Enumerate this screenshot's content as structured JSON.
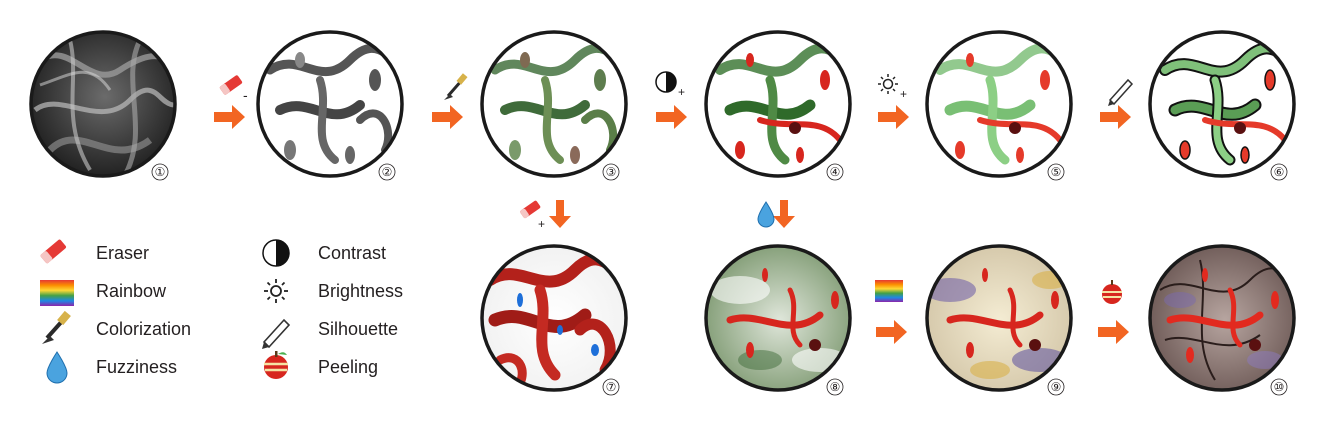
{
  "figure": {
    "panels": [
      {
        "number": "①",
        "name": "raw-volume"
      },
      {
        "number": "②",
        "name": "after-erase"
      },
      {
        "number": "③",
        "name": "after-colorization"
      },
      {
        "number": "④",
        "name": "after-contrast"
      },
      {
        "number": "⑤",
        "name": "after-brightness"
      },
      {
        "number": "⑥",
        "name": "after-silhouette"
      },
      {
        "number": "⑦",
        "name": "after-eraser-add"
      },
      {
        "number": "⑧",
        "name": "after-fuzziness"
      },
      {
        "number": "⑨",
        "name": "after-rainbow"
      },
      {
        "number": "⑩",
        "name": "after-peeling"
      }
    ],
    "step_marks": {
      "minus": "-",
      "plus": "+"
    }
  },
  "legend": {
    "eraser": "Eraser",
    "rainbow": "Rainbow",
    "colorization": "Colorization",
    "fuzziness": "Fuzziness",
    "contrast": "Contrast",
    "brightness": "Brightness",
    "silhouette": "Silhouette",
    "peeling": "Peeling"
  },
  "colors": {
    "arrow": "#f26522",
    "circle_border": "#1a1a1a",
    "red_tube": "#d7261e",
    "green": "#2e7d32",
    "text": "#231f20"
  }
}
